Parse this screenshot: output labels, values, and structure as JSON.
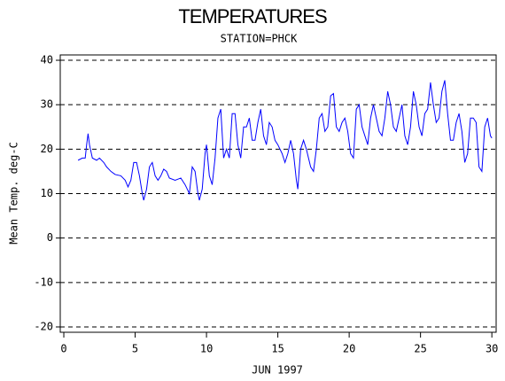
{
  "chart_data": {
    "type": "line",
    "title": "TEMPERATURES",
    "subtitle": "STATION=PHCK",
    "x_label": "JUN 1997",
    "y_label": "Mean Temp. deg-C",
    "x": [
      1,
      1.3,
      1.5,
      1.6,
      1.7,
      1.8,
      2.0,
      2.3,
      2.5,
      2.8,
      3.0,
      3.3,
      3.6,
      4.0,
      4.3,
      4.5,
      4.7,
      4.9,
      5.1,
      5.3,
      5.5,
      5.6,
      5.8,
      6.0,
      6.2,
      6.4,
      6.6,
      6.8,
      7.0,
      7.2,
      7.4,
      7.8,
      8.2,
      8.5,
      8.8,
      9.0,
      9.2,
      9.4,
      9.5,
      9.7,
      9.9,
      10.0,
      10.2,
      10.4,
      10.6,
      10.8,
      11.0,
      11.2,
      11.4,
      11.6,
      11.8,
      12.0,
      12.2,
      12.4,
      12.6,
      12.8,
      13.0,
      13.2,
      13.4,
      13.6,
      13.8,
      14.0,
      14.2,
      14.4,
      14.6,
      14.8,
      15.0,
      15.3,
      15.5,
      15.7,
      15.9,
      16.1,
      16.3,
      16.4,
      16.6,
      16.8,
      17.0,
      17.3,
      17.5,
      17.7,
      17.9,
      18.1,
      18.3,
      18.5,
      18.7,
      18.9,
      19.1,
      19.3,
      19.5,
      19.7,
      19.9,
      20.1,
      20.3,
      20.5,
      20.7,
      20.9,
      21.1,
      21.3,
      21.5,
      21.7,
      21.9,
      22.1,
      22.3,
      22.5,
      22.7,
      22.9,
      23.1,
      23.3,
      23.5,
      23.7,
      23.9,
      24.1,
      24.3,
      24.5,
      24.7,
      24.9,
      25.1,
      25.3,
      25.5,
      25.7,
      25.9,
      26.1,
      26.3,
      26.5,
      26.7,
      26.9,
      27.1,
      27.3,
      27.5,
      27.7,
      27.9,
      28.1,
      28.3,
      28.5,
      28.7,
      28.9,
      29.1,
      29.3,
      29.5,
      29.7,
      29.9,
      30.0
    ],
    "values": [
      17.5,
      18,
      18,
      21,
      23.5,
      21,
      18,
      17.5,
      18,
      17,
      16,
      15,
      14.3,
      14,
      13,
      11.5,
      13,
      17,
      17,
      14,
      10,
      8.5,
      11,
      16,
      17,
      14,
      13,
      14,
      15.5,
      15,
      13.5,
      13,
      13.5,
      12,
      10,
      16,
      15,
      10,
      8.5,
      11,
      19,
      21,
      14,
      12,
      18,
      27,
      29,
      18,
      20,
      18,
      28,
      28,
      21,
      18,
      25,
      25,
      27,
      22,
      22,
      26,
      29,
      23,
      21,
      26,
      25,
      22,
      21,
      19,
      17,
      19,
      22,
      19,
      13,
      11,
      20,
      22,
      20,
      16,
      15,
      20,
      27,
      28,
      24,
      25,
      32,
      32.5,
      25,
      24,
      26,
      27,
      24,
      19,
      18,
      29,
      30,
      25,
      23,
      21,
      27,
      30,
      27,
      24,
      23,
      27,
      33,
      30,
      25,
      24,
      27,
      30,
      23,
      21,
      25,
      33,
      30,
      25,
      23,
      28,
      29,
      35,
      30,
      26,
      27,
      33,
      35.5,
      28,
      22,
      22,
      26,
      28,
      24,
      17,
      19,
      27,
      27,
      26,
      16,
      15,
      25,
      27,
      23,
      22.5
    ],
    "color": "#0000ff",
    "xlim": [
      -0.25,
      30.3
    ],
    "ylim": [
      -21.2,
      41.2
    ],
    "xticks": [
      0,
      5,
      10,
      15,
      20,
      25,
      30
    ],
    "yticks": [
      -20,
      -10,
      0,
      10,
      20,
      30,
      40
    ],
    "grid": true
  }
}
